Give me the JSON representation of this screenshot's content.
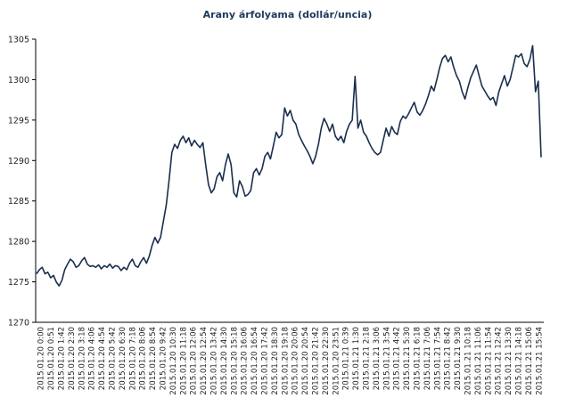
{
  "chart_data": {
    "type": "line",
    "title": "Arany árfolyama (dollár/uncia)",
    "xlabel": "",
    "ylabel": "",
    "ylim": [
      1270,
      1305
    ],
    "yticks": [
      1270,
      1275,
      1280,
      1285,
      1290,
      1295,
      1300,
      1305
    ],
    "grid": false,
    "legend": "none",
    "line_color": "#1a2e4e",
    "x_tick_labels": [
      "2015.01.20 0:00",
      "2015.01.20 0:51",
      "2015.01.20 1:42",
      "2015.01.20 2:30",
      "2015.01.20 3:18",
      "2015.01.20 4:06",
      "2015.01.20 4:54",
      "2015.01.20 5:42",
      "2015.01.20 6:30",
      "2015.01.20 7:18",
      "2015.01.20 8:06",
      "2015.01.20 8:54",
      "2015.01.20 9:42",
      "2015.01.20 10:30",
      "2015.01.20 11:18",
      "2015.01.20 12:06",
      "2015.01.20 12:54",
      "2015.01.20 13:42",
      "2015.01.20 14:30",
      "2015.01.20 15:18",
      "2015.01.20 16:06",
      "2015.01.20 16:54",
      "2015.01.20 17:42",
      "2015.01.20 18:30",
      "2015.01.20 19:18",
      "2015.01.20 20:06",
      "2015.01.20 20:54",
      "2015.01.20 21:42",
      "2015.01.20 22:30",
      "2015.01.20 23:51",
      "2015.01.21 0:39",
      "2015.01.21 1:30",
      "2015.01.21 2:18",
      "2015.01.21 3:06",
      "2015.01.21 3:54",
      "2015.01.21 4:42",
      "2015.01.21 5:30",
      "2015.01.21 6:18",
      "2015.01.21 7:06",
      "2015.01.21 7:54",
      "2015.01.21 8:42",
      "2015.01.21 9:30",
      "2015.01.21 10:18",
      "2015.01.21 11:06",
      "2015.01.21 11:54",
      "2015.01.21 12:42",
      "2015.01.21 13:30",
      "2015.01.21 14:18",
      "2015.01.21 15:06",
      "2015.01.21 15:54"
    ],
    "series": [
      {
        "values": [
          1276.0,
          1276.5,
          1276.8,
          1276.0,
          1276.2,
          1275.5,
          1275.8,
          1275.0,
          1274.5,
          1275.2,
          1276.5,
          1277.2,
          1277.8,
          1277.5,
          1276.8,
          1277.0,
          1277.6,
          1278.0,
          1277.2,
          1276.9,
          1277.0,
          1276.8,
          1277.1,
          1276.6,
          1277.0,
          1276.8,
          1277.2,
          1276.7,
          1277.0,
          1276.9,
          1276.4,
          1276.8,
          1276.5,
          1277.3,
          1277.8,
          1277.0,
          1276.8,
          1277.5,
          1278.0,
          1277.3,
          1278.2,
          1279.5,
          1280.5,
          1279.8,
          1280.5,
          1282.5,
          1284.5,
          1287.5,
          1291.0,
          1292.0,
          1291.5,
          1292.5,
          1293.0,
          1292.2,
          1292.8,
          1291.8,
          1292.5,
          1292.0,
          1291.6,
          1292.2,
          1289.5,
          1287.0,
          1286.0,
          1286.5,
          1288.0,
          1288.5,
          1287.5,
          1289.5,
          1290.8,
          1289.5,
          1286.0,
          1285.5,
          1287.5,
          1286.8,
          1285.6,
          1285.8,
          1286.3,
          1288.5,
          1289.0,
          1288.2,
          1289.0,
          1290.5,
          1291.0,
          1290.2,
          1291.8,
          1293.5,
          1292.8,
          1293.2,
          1296.5,
          1295.5,
          1296.2,
          1295.0,
          1294.5,
          1293.2,
          1292.5,
          1291.8,
          1291.2,
          1290.5,
          1289.6,
          1290.5,
          1292.0,
          1294.0,
          1295.2,
          1294.5,
          1293.6,
          1294.5,
          1293.0,
          1292.5,
          1293.0,
          1292.2,
          1293.6,
          1294.5,
          1295.0,
          1300.4,
          1294.0,
          1295.0,
          1293.5,
          1293.0,
          1292.2,
          1291.5,
          1291.0,
          1290.7,
          1291.0,
          1292.5,
          1294.0,
          1293.0,
          1294.2,
          1293.5,
          1293.2,
          1294.8,
          1295.5,
          1295.2,
          1295.8,
          1296.5,
          1297.2,
          1296.0,
          1295.6,
          1296.2,
          1297.0,
          1298.0,
          1299.2,
          1298.6,
          1300.0,
          1301.5,
          1302.6,
          1303.0,
          1302.2,
          1302.8,
          1301.5,
          1300.5,
          1299.8,
          1298.5,
          1297.6,
          1299.0,
          1300.2,
          1301.0,
          1301.8,
          1300.5,
          1299.2,
          1298.6,
          1298.0,
          1297.5,
          1297.8,
          1296.8,
          1298.5,
          1299.5,
          1300.5,
          1299.2,
          1300.0,
          1301.5,
          1303.0,
          1302.8,
          1303.2,
          1302.0,
          1301.6,
          1302.5,
          1304.2,
          1298.5,
          1299.8,
          1290.4
        ]
      }
    ]
  }
}
